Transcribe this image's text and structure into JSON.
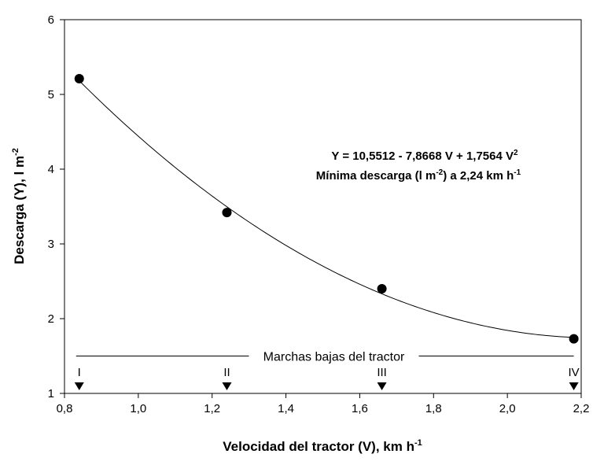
{
  "chart_data": {
    "type": "scatter",
    "xlabel": "Velocidad del tractor (V), km h",
    "xlabel_sup": "-1",
    "ylabel": "Descarga (Y), l m",
    "ylabel_sup": "-2",
    "xlim": [
      0.8,
      2.2
    ],
    "ylim": [
      1,
      6
    ],
    "x_ticks": [
      "0,8",
      "1,0",
      "1,2",
      "1,4",
      "1,6",
      "1,8",
      "2,0",
      "2,2"
    ],
    "x_tick_values": [
      0.8,
      1.0,
      1.2,
      1.4,
      1.6,
      1.8,
      2.0,
      2.2
    ],
    "y_ticks": [
      "1",
      "2",
      "3",
      "4",
      "5",
      "6"
    ],
    "y_tick_values": [
      1,
      2,
      3,
      4,
      5,
      6
    ],
    "series": [
      {
        "x": [
          0.84,
          1.24,
          1.66,
          2.18
        ],
        "y": [
          5.21,
          3.42,
          2.4,
          1.73
        ]
      }
    ],
    "fit": {
      "a": 10.5512,
      "b": -7.8668,
      "c": 1.7564
    },
    "equation_line1": "Y = 10,5512 - 7,8668 V + 1,7564 V",
    "equation_line1_sup": "2",
    "equation_line2_a": "Mínima descarga (l m",
    "equation_line2_sup1": "-2",
    "equation_line2_b": ") a 2,24 km h",
    "equation_line2_sup2": "-1",
    "gear_band_label": "Marchas bajas del tractor",
    "gear_band_y": 1.5,
    "gears": [
      {
        "label": "I",
        "x": 0.84
      },
      {
        "label": "II",
        "x": 1.24
      },
      {
        "label": "III",
        "x": 1.66
      },
      {
        "label": "IV",
        "x": 2.18
      }
    ]
  }
}
